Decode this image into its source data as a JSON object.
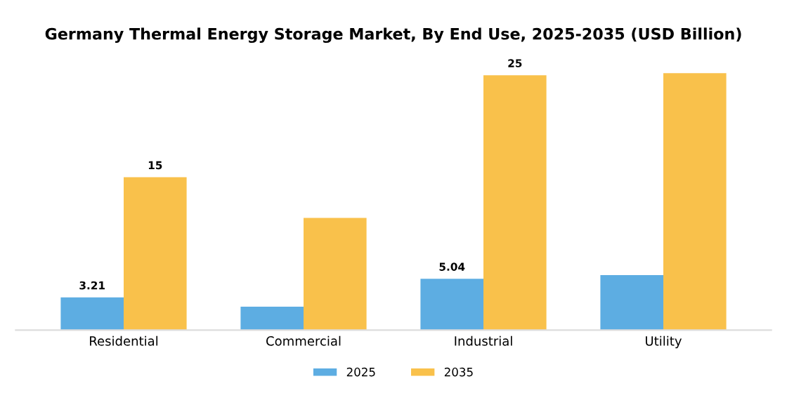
{
  "chart_data": {
    "type": "bar",
    "title": "Germany Thermal Energy Storage Market, By End Use, 2025-2035 (USD Billion)",
    "categories": [
      "Residential",
      "Commercial",
      "Industrial",
      "Utility"
    ],
    "series": [
      {
        "name": "2025",
        "color": "#5dade2",
        "values": [
          3.21,
          2.3,
          5.04,
          5.4
        ],
        "value_labels": [
          "3.21",
          null,
          "5.04",
          null
        ]
      },
      {
        "name": "2035",
        "color": "#f9c14b",
        "values": [
          15,
          11,
          25,
          25.2
        ],
        "value_labels": [
          "15",
          null,
          "25",
          null
        ]
      }
    ],
    "legend": "bottom",
    "grid": false,
    "tick_labels": "x"
  }
}
